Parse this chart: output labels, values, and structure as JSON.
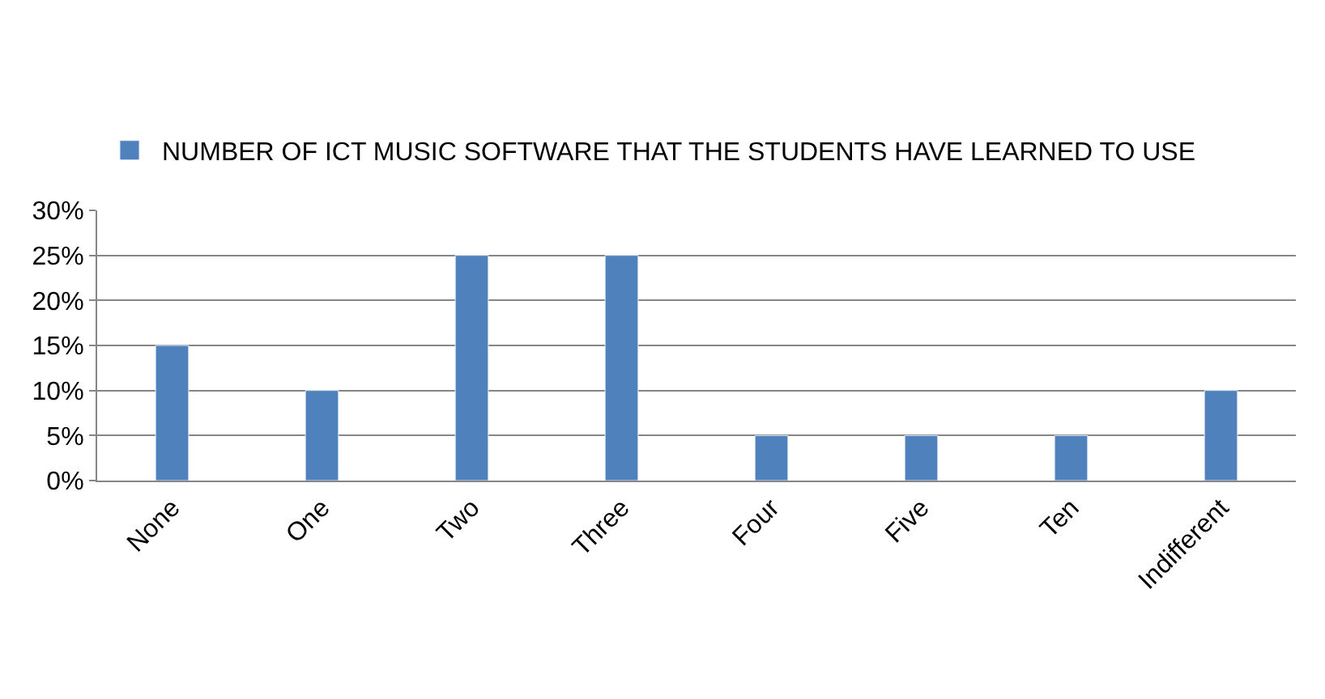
{
  "chart_data": {
    "type": "bar",
    "categories": [
      "None",
      "One",
      "Two",
      "Three",
      "Four",
      "Five",
      "Ten",
      "Indifferent"
    ],
    "series": [
      {
        "name": "NUMBER OF ICT MUSIC SOFTWARE THAT THE STUDENTS HAVE LEARNED TO USE",
        "color": "#4f81bd",
        "values": [
          15,
          10,
          25,
          25,
          5,
          5,
          5,
          10
        ]
      }
    ],
    "ylim": [
      0,
      30
    ],
    "yticks": [
      {
        "value": 0,
        "label": "0%"
      },
      {
        "value": 5,
        "label": "5%"
      },
      {
        "value": 10,
        "label": "10%"
      },
      {
        "value": 15,
        "label": "15%"
      },
      {
        "value": 20,
        "label": "20%"
      },
      {
        "value": 25,
        "label": "25%"
      },
      {
        "value": 30,
        "label": "30%"
      }
    ],
    "grid": "y",
    "legend": "top"
  }
}
